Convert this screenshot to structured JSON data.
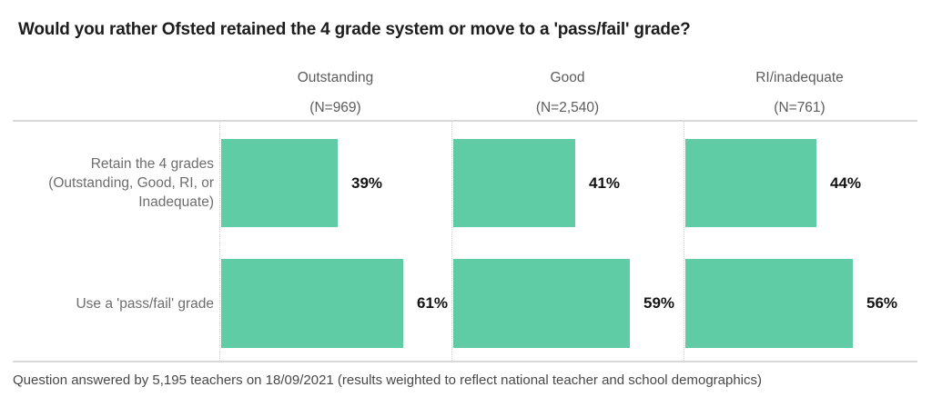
{
  "title": "Would you rather Ofsted retained the 4 grade system or move to a 'pass/fail' grade?",
  "footnote": "Question answered by 5,195 teachers on 18/09/2021 (results weighted to reflect national teacher and school demographics)",
  "colors": {
    "bar": "#5fcca6",
    "grid_line": "#d9d9d9",
    "header_text": "#5c5c5c",
    "row_label_text": "#6d6d6d",
    "value_text": "#141414"
  },
  "chart_data": {
    "type": "bar",
    "orientation": "horizontal",
    "title": "Would you rather Ofsted retained the 4 grade system or move to a 'pass/fail' grade?",
    "categories": [
      "Retain the 4 grades (Outstanding, Good, RI, or Inadequate)",
      "Use a 'pass/fail' grade"
    ],
    "groups": [
      {
        "label": "Outstanding",
        "n_label": "(N=969)",
        "n": 969
      },
      {
        "label": "Good",
        "n_label": "(N=2,540)",
        "n": 2540
      },
      {
        "label": "RI/inadequate",
        "n_label": "(N=761)",
        "n": 761
      }
    ],
    "series": [
      {
        "name": "Outstanding",
        "values": [
          39,
          61
        ],
        "display": [
          "39%",
          "61%"
        ]
      },
      {
        "name": "Good",
        "values": [
          41,
          59
        ],
        "display": [
          "41%",
          "59%"
        ]
      },
      {
        "name": "RI/inadequate",
        "values": [
          44,
          56
        ],
        "display": [
          "44%",
          "56%"
        ]
      }
    ],
    "unit": "%",
    "value_labels_shown": true,
    "axes_shown": false,
    "grid": "column dividers dotted, top and bottom rules solid",
    "xlim": [
      0,
      77
    ]
  }
}
